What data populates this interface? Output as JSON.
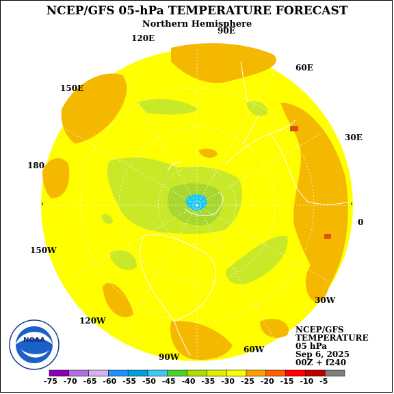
{
  "title": "NCEP/GFS 05-hPa TEMPERATURE FORECAST",
  "subtitle": "Northern Hemisphere",
  "longitude_labels": [
    "90E",
    "60E",
    "30E",
    "0",
    "30W",
    "60W",
    "90W",
    "120W",
    "150W",
    "180",
    "150E",
    "120E"
  ],
  "info": {
    "model": "NCEP/GFS",
    "variable": "TEMPERATURE",
    "level": "05 hPa",
    "date": "Sep 6, 2025",
    "run": "00Z + f240"
  },
  "logo": {
    "text": "NOAA",
    "ring_text": "NATIONAL OCEANIC AND ATMOSPHERIC ADMINISTRATION · U.S. DEPARTMENT OF COMMERCE"
  },
  "colorbar": {
    "labels": [
      "-75",
      "-70",
      "-65",
      "-60",
      "-55",
      "-50",
      "-45",
      "-40",
      "-35",
      "-30",
      "-25",
      "-20",
      "-15",
      "-10",
      "-5"
    ],
    "colors": [
      "#8a00b8",
      "#b070e0",
      "#d8b0f0",
      "#1e90ff",
      "#00a0e0",
      "#40c8f0",
      "#50d030",
      "#a8e000",
      "#e0f000",
      "#ffff00",
      "#ffa000",
      "#ff6000",
      "#ff0000",
      "#c00000",
      "#808080"
    ]
  },
  "field_colors": {
    "yellow": "#ffff00",
    "orange": "#f5b700",
    "light_green": "#c8e828",
    "green": "#a8d830",
    "blue": "#20c8f0"
  }
}
